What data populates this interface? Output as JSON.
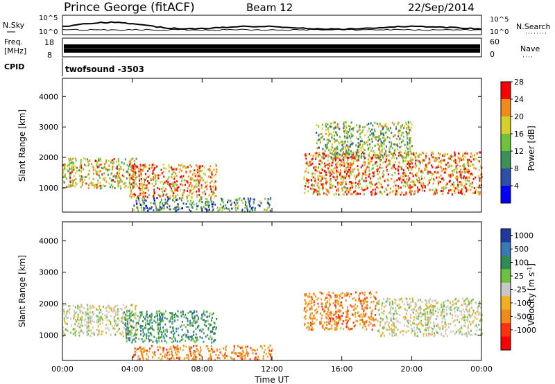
{
  "header": {
    "station": "Prince George (fitACF)",
    "beam": "Beam 12",
    "date": "22/Sep/2014"
  },
  "noise_panel": {
    "left_label": "N.Sky",
    "left_ticks": [
      "10^5",
      "10^0"
    ],
    "right_label": "N.Search",
    "right_ticks": [
      "10^5",
      "10^0"
    ]
  },
  "freq_panel": {
    "left_label_1": "Freq.",
    "left_label_2": "[MHz]",
    "left_ticks": [
      "18",
      "8"
    ],
    "right_label": "Nave",
    "right_ticks": [
      "60",
      "0"
    ]
  },
  "cpid_label": "CPID",
  "cpid_text": "twofsound -3503",
  "chart_data": [
    {
      "type": "heatmap",
      "panel": "power",
      "ylabel": "Slant Range [km]",
      "ylim": [
        200,
        4600
      ],
      "yticks": [
        "1000",
        "2000",
        "3000",
        "4000"
      ],
      "xlim": [
        "00:00",
        "24:00"
      ],
      "colorbar_label": "Power [dB]",
      "colorbar_ticks": [
        "4",
        "8",
        "12",
        "16",
        "20",
        "24",
        "28"
      ],
      "colors": [
        "#0000ff",
        "#2c4fa8",
        "#3c8f5a",
        "#6fc23a",
        "#d8d02a",
        "#f08a1a",
        "#ff0000"
      ],
      "echo_regions": [
        {
          "t": [
            0.0,
            4.2
          ],
          "range": [
            1000,
            2000
          ],
          "value": 20
        },
        {
          "t": [
            3.8,
            8.8
          ],
          "range": [
            700,
            1800
          ],
          "value": 24
        },
        {
          "t": [
            4.0,
            12.0
          ],
          "range": [
            250,
            700
          ],
          "value": 10
        },
        {
          "t": [
            13.8,
            24.0
          ],
          "range": [
            800,
            2200
          ],
          "value": 22
        },
        {
          "t": [
            14.5,
            20.0
          ],
          "range": [
            2000,
            3200
          ],
          "value": 14
        }
      ]
    },
    {
      "type": "heatmap",
      "panel": "velocity",
      "ylabel": "Slant Range [km]",
      "ylim": [
        200,
        4600
      ],
      "yticks": [
        "1000",
        "2000",
        "3000",
        "4000"
      ],
      "xlabel": "Time UT",
      "xticks": [
        "00:00",
        "04:00",
        "08:00",
        "12:00",
        "16:00",
        "20:00",
        "00:00"
      ],
      "colorbar_label": "Velocity [m s",
      "colorbar_label_sup": "-1",
      "colorbar_label_end": "]",
      "colorbar_ticks": [
        "1000",
        "500",
        "100",
        "25",
        "-25",
        "-100",
        "-500",
        "-1000"
      ],
      "colors": [
        "#2039a0",
        "#3a78b8",
        "#2f8a55",
        "#6cc240",
        "#c8c8c8",
        "#f0b020",
        "#f08a1a",
        "#ff3010",
        "#ff0000"
      ],
      "echo_regions": [
        {
          "t": [
            0.0,
            4.2
          ],
          "range": [
            1000,
            2000
          ],
          "value": 0
        },
        {
          "t": [
            3.5,
            8.8
          ],
          "range": [
            800,
            1800
          ],
          "value": 400
        },
        {
          "t": [
            4.0,
            12.0
          ],
          "range": [
            250,
            700
          ],
          "value": -200
        },
        {
          "t": [
            13.8,
            18.0
          ],
          "range": [
            1200,
            2400
          ],
          "value": -300
        },
        {
          "t": [
            18.0,
            24.0
          ],
          "range": [
            1000,
            2200
          ],
          "value": 0
        }
      ]
    }
  ]
}
